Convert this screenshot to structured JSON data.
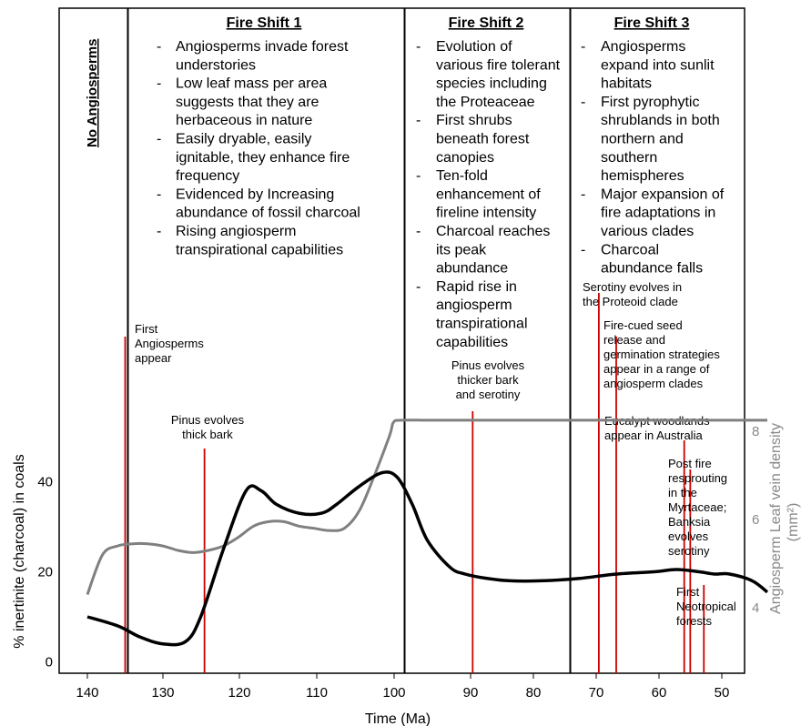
{
  "chart_data": {
    "type": "line",
    "xlabel": "Time (Ma)",
    "ylabel": "% inertinite (charcoal) in coals",
    "y2label": "Angiosperm Leaf vein density",
    "y2unit": "(mm²)",
    "x_ticks": [
      "140",
      "130",
      "120",
      "110",
      "100",
      "90",
      "80",
      "70",
      "60",
      "50"
    ],
    "y_ticks": [
      "0",
      "20",
      "40"
    ],
    "y2_ticks": [
      "4",
      "6",
      "8"
    ],
    "colors": {
      "charcoal": "#000000",
      "vein": "#808080",
      "event": "#cc0000",
      "y2text": "#888888"
    },
    "series": [
      {
        "key": "charcoal",
        "x": [
          140,
          136,
          133,
          130,
          127,
          125,
          122,
          119,
          117,
          115,
          112,
          109,
          107,
          104,
          101,
          99,
          97,
          95,
          92,
          90,
          87,
          84,
          80,
          75,
          70,
          65,
          62,
          59,
          57,
          55,
          52,
          50
        ],
        "y": [
          10,
          8,
          5.5,
          4,
          4.5,
          10,
          25,
          38,
          38,
          35,
          33,
          33,
          35,
          39,
          42,
          41,
          35,
          27,
          21,
          19.5,
          18.5,
          18,
          18,
          18.5,
          19.5,
          20,
          20.5,
          20,
          19.5,
          19.5,
          18,
          15.5
        ]
      },
      {
        "key": "vein",
        "x": [
          140,
          138,
          136,
          134,
          132,
          130,
          128,
          126,
          124,
          122,
          120,
          118,
          116,
          114,
          112,
          110,
          108,
          106,
          104,
          102,
          100,
          99.5,
          98.5,
          95,
          90,
          85,
          80,
          75,
          70,
          65,
          60,
          55,
          50
        ],
        "y": [
          4.3,
          5.2,
          5.4,
          5.45,
          5.45,
          5.4,
          5.3,
          5.25,
          5.3,
          5.4,
          5.6,
          5.85,
          5.95,
          5.95,
          5.85,
          5.8,
          5.75,
          5.8,
          6.2,
          7.0,
          7.9,
          8.2,
          8.25,
          8.25,
          8.25,
          8.25,
          8.25,
          8.25,
          8.25,
          8.25,
          8.25,
          8.25,
          8.25
        ]
      }
    ],
    "shifts": [
      {
        "title": "No Angiosperms",
        "bullets": []
      },
      {
        "title": "Fire Shift 1",
        "bullets": [
          [
            "Angiosperms invade forest",
            "understories"
          ],
          [
            "Low leaf mass per area",
            "suggests that they are",
            "herbaceous in nature"
          ],
          [
            "Easily dryable, easily",
            "ignitable, they enhance fire",
            "frequency"
          ],
          [
            "Evidenced by Increasing",
            "abundance of fossil charcoal"
          ],
          [
            "Rising angiosperm",
            "transpirational capabilities"
          ]
        ]
      },
      {
        "title": "Fire Shift 2",
        "bullets": [
          [
            "Evolution of",
            "various fire tolerant",
            "species including",
            "the Proteaceae"
          ],
          [
            "First shrubs",
            "beneath forest",
            "canopies"
          ],
          [
            "Ten-fold",
            "enhancement of",
            "fireline intensity"
          ],
          [
            "Charcoal reaches",
            "its peak",
            "abundance"
          ],
          [
            "Rapid rise in",
            "angiosperm",
            "transpirational",
            "capabilities"
          ]
        ]
      },
      {
        "title": "Fire Shift 3",
        "bullets": [
          [
            "Angiosperms",
            "expand into sunlit",
            "habitats"
          ],
          [
            "First pyrophytic",
            "shrublands in both",
            "northern and",
            "southern",
            "hemispheres"
          ],
          [
            "Major expansion of",
            "fire adaptations in",
            "various clades"
          ],
          [
            "Charcoal",
            "abundance falls"
          ]
        ]
      }
    ],
    "events": [
      {
        "x": 135,
        "top": 370,
        "label": [
          "First",
          "Angiosperms",
          "appear"
        ],
        "lx": 148,
        "ly": 366,
        "anchor": "start"
      },
      {
        "x": 124.5,
        "top": 493,
        "label": [
          "Pinus evolves",
          "thick bark"
        ],
        "lx": 228,
        "ly": 466,
        "anchor": "middle"
      },
      {
        "x": 89,
        "top": 452,
        "label": [
          "Pinus evolves",
          "thicker bark",
          "and serotiny"
        ],
        "lx": 536,
        "ly": 406,
        "anchor": "middle"
      },
      {
        "x": 72.3,
        "top": 322,
        "label": [
          "Serotiny evolves in",
          "the Proteoid clade"
        ],
        "lx": 640,
        "ly": 320,
        "anchor": "start"
      },
      {
        "x": 70,
        "top": 370,
        "label": [
          "Fire-cued seed",
          "release and",
          "germination strategies",
          "appear in a range of",
          "angiosperm clades"
        ],
        "lx": 663,
        "ly": 362,
        "anchor": "start"
      },
      {
        "x": 61,
        "top": 484,
        "label": [
          "Eucalypt woodlands",
          "appear in Australia"
        ],
        "lx": 664,
        "ly": 467,
        "anchor": "start"
      },
      {
        "x": 60.2,
        "top": 516,
        "label": [
          "Post fire",
          "resprouting",
          "in the",
          "Myrtaceae;",
          "Banksia",
          "evolves",
          "serotiny"
        ],
        "lx": 734,
        "ly": 514,
        "anchor": "start"
      },
      {
        "x": 58.4,
        "top": 643,
        "label": [
          "First",
          "Neotropical",
          "forests"
        ],
        "lx": 743,
        "ly": 655,
        "anchor": "start"
      }
    ]
  }
}
